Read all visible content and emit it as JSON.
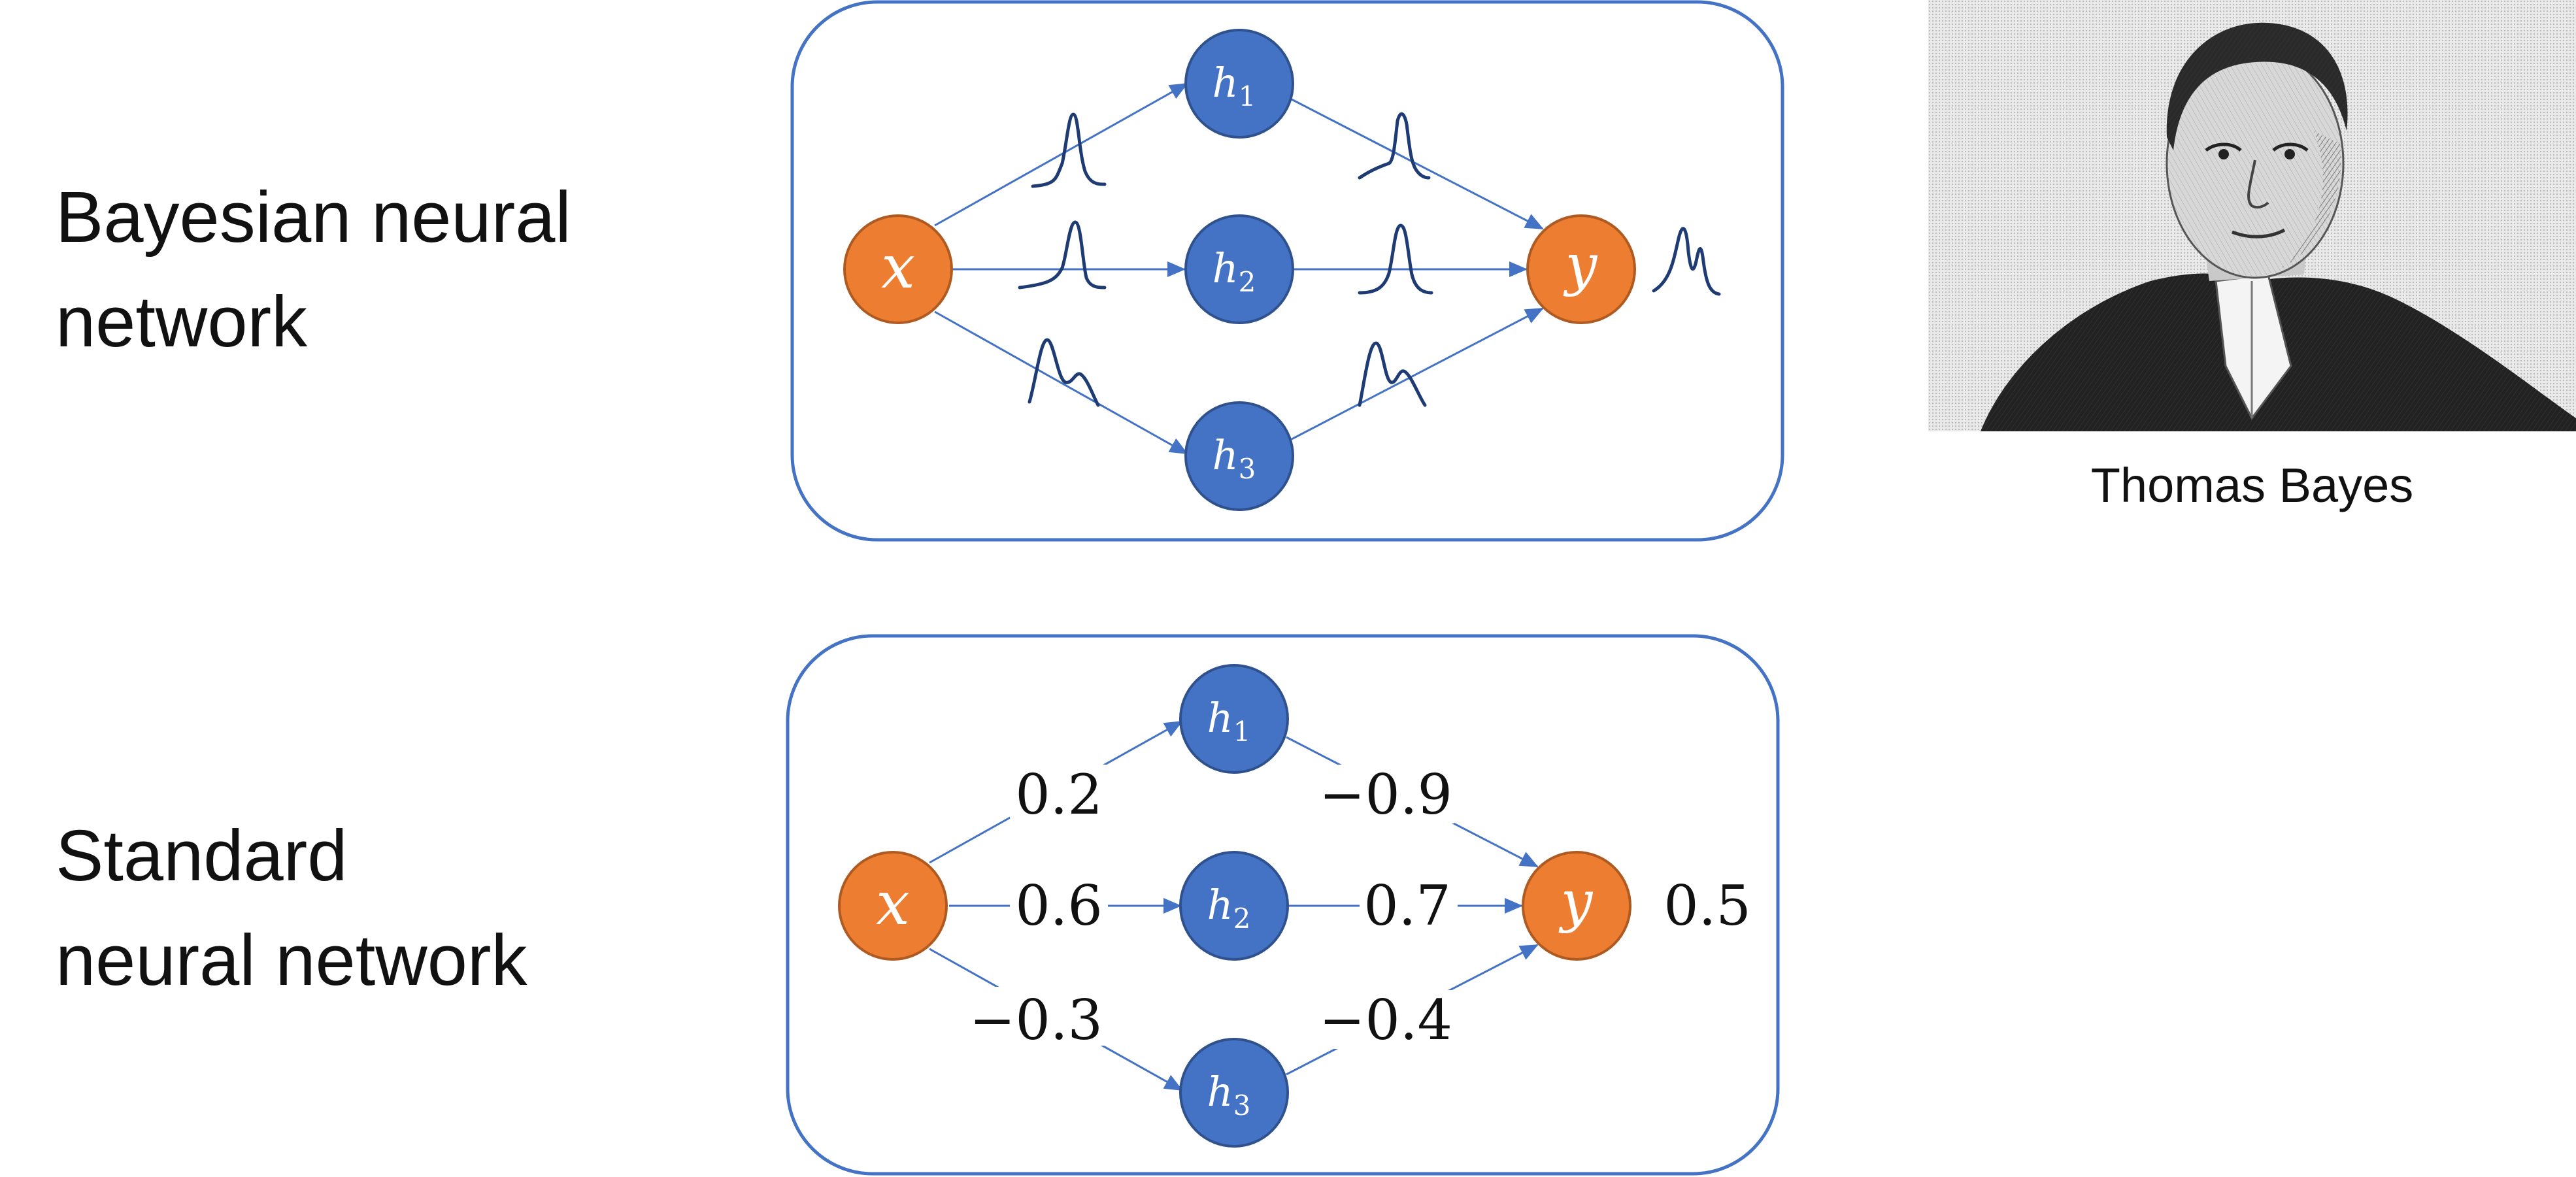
{
  "bnn": {
    "title_line1": "Bayesian neural",
    "title_line2": "network",
    "nodes": {
      "x": "x",
      "h1": "h",
      "h1_sub": "1",
      "h2": "h",
      "h2_sub": "2",
      "h3": "h",
      "h3_sub": "3",
      "y": "y"
    }
  },
  "snn": {
    "title_line1": "Standard",
    "title_line2": "neural network",
    "nodes": {
      "x": "x",
      "h1": "h",
      "h1_sub": "1",
      "h2": "h",
      "h2_sub": "2",
      "h3": "h",
      "h3_sub": "3",
      "y": "y"
    },
    "weights": {
      "x_h1": "0.2",
      "x_h2": "0.6",
      "x_h3": "−0.3",
      "h1_y": "−0.9",
      "h2_y": "0.7",
      "h3_y": "−0.4",
      "output": "0.5"
    }
  },
  "portrait": {
    "caption": "Thomas Bayes"
  },
  "colors": {
    "blue": "#4472C4",
    "orange": "#ED7D31",
    "edge": "#4472C4"
  }
}
